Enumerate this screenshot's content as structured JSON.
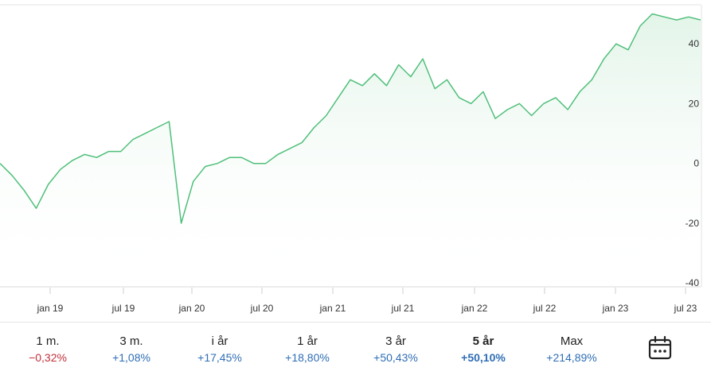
{
  "chart_data": {
    "type": "area",
    "x_ticks": [
      "jan 19",
      "jul 19",
      "jan 20",
      "jul 20",
      "jan 21",
      "jul 21",
      "jan 22",
      "jul 22",
      "jan 23",
      "jul 23"
    ],
    "y_ticks": [
      "40",
      "20",
      "0",
      "-20",
      "-40"
    ],
    "ylim": [
      -41,
      52
    ],
    "xlim": [
      0,
      58
    ],
    "grid": true,
    "line_color": "#4fbf7a",
    "fill_color": "#e9f7ee",
    "series": [
      {
        "x": [
          0,
          1,
          2,
          3,
          4,
          5,
          6,
          7,
          8,
          9,
          10,
          11,
          12,
          13,
          14,
          15,
          16,
          17,
          18,
          19,
          20,
          21,
          22,
          23,
          24,
          25,
          26,
          27,
          28,
          29,
          30,
          31,
          32,
          33,
          34,
          35,
          36,
          37,
          38,
          39,
          40,
          41,
          42,
          43,
          44,
          45,
          46,
          47,
          48,
          49,
          50,
          51,
          52,
          53,
          54,
          55,
          56,
          57,
          58
        ],
        "values": [
          0,
          -4,
          -9,
          -15,
          -7,
          -2,
          1,
          3,
          2,
          4,
          4,
          8,
          10,
          12,
          14,
          -20,
          -6,
          -1,
          0,
          2,
          2,
          0,
          0,
          3,
          5,
          7,
          12,
          16,
          22,
          28,
          26,
          30,
          26,
          33,
          29,
          35,
          25,
          28,
          22,
          20,
          24,
          15,
          18,
          20,
          16,
          20,
          22,
          18,
          24,
          28,
          35,
          40,
          38,
          46,
          50,
          49,
          48,
          49,
          48
        ]
      }
    ]
  },
  "periods": [
    {
      "label": "1 m.",
      "change": "−0,32%",
      "sign": "neg"
    },
    {
      "label": "3 m.",
      "change": "+1,08%",
      "sign": "pos"
    },
    {
      "label": "i år",
      "change": "+17,45%",
      "sign": "pos"
    },
    {
      "label": "1 år",
      "change": "+18,80%",
      "sign": "pos"
    },
    {
      "label": "3 år",
      "change": "+50,43%",
      "sign": "pos"
    },
    {
      "label": "5 år",
      "change": "+50,10%",
      "sign": "pos",
      "active": true
    },
    {
      "label": "Max",
      "change": "+214,89%",
      "sign": "pos"
    }
  ],
  "calendar_icon": "calendar-icon"
}
